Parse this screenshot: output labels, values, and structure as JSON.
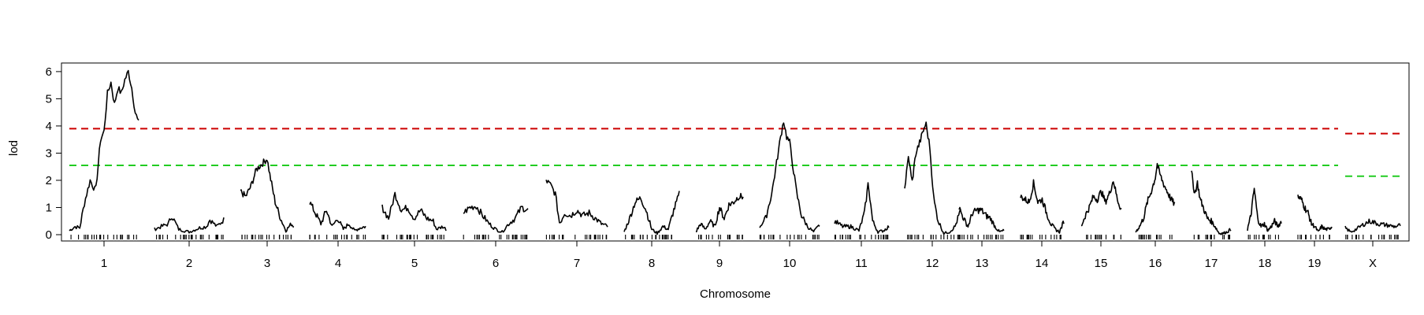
{
  "chart_data": {
    "type": "line",
    "title": "",
    "xlabel": "Chromosome",
    "ylabel": "lod",
    "ylim": [
      0,
      6.2
    ],
    "y_ticks": [
      "0",
      "1",
      "2",
      "3",
      "4",
      "5",
      "6"
    ],
    "grid": false,
    "legend": "none",
    "colors": {
      "line": "#000000",
      "threshold_high": "#cc0000",
      "threshold_low": "#22cc22"
    },
    "thresholds": {
      "autosomes": {
        "high": 3.9,
        "low": 2.55
      },
      "X": {
        "high": 3.72,
        "low": 2.15
      }
    },
    "chromosomes": [
      {
        "label": "1",
        "profile": [
          [
            0,
            0.15
          ],
          [
            0.08,
            0.3
          ],
          [
            0.15,
            0.25
          ],
          [
            0.22,
            1.2
          ],
          [
            0.3,
            2.0
          ],
          [
            0.38,
            1.6
          ],
          [
            0.45,
            3.5
          ],
          [
            0.5,
            3.8
          ],
          [
            0.55,
            5.2
          ],
          [
            0.6,
            5.6
          ],
          [
            0.65,
            4.8
          ],
          [
            0.7,
            5.4
          ],
          [
            0.75,
            5.2
          ],
          [
            0.8,
            5.7
          ],
          [
            0.85,
            6.0
          ],
          [
            0.9,
            5.4
          ],
          [
            0.95,
            4.5
          ],
          [
            1,
            4.1
          ]
        ]
      },
      {
        "label": "2",
        "profile": [
          [
            0,
            0.2
          ],
          [
            0.2,
            0.4
          ],
          [
            0.25,
            0.7
          ],
          [
            0.35,
            0.2
          ],
          [
            0.5,
            0.1
          ],
          [
            0.65,
            0.25
          ],
          [
            0.75,
            0.3
          ],
          [
            0.8,
            0.55
          ],
          [
            0.9,
            0.3
          ],
          [
            1,
            0.55
          ]
        ]
      },
      {
        "label": "3",
        "profile": [
          [
            0,
            1.6
          ],
          [
            0.1,
            1.4
          ],
          [
            0.2,
            1.8
          ],
          [
            0.3,
            2.4
          ],
          [
            0.4,
            2.6
          ],
          [
            0.5,
            2.8
          ],
          [
            0.55,
            2.2
          ],
          [
            0.65,
            1.2
          ],
          [
            0.75,
            0.6
          ],
          [
            0.85,
            0.15
          ],
          [
            0.95,
            0.4
          ],
          [
            1,
            0.3
          ]
        ]
      },
      {
        "label": "4",
        "profile": [
          [
            0,
            1.2
          ],
          [
            0.1,
            0.8
          ],
          [
            0.2,
            0.4
          ],
          [
            0.3,
            0.9
          ],
          [
            0.4,
            0.3
          ],
          [
            0.5,
            0.6
          ],
          [
            0.6,
            0.2
          ],
          [
            0.7,
            0.4
          ],
          [
            0.8,
            0.15
          ],
          [
            0.9,
            0.25
          ],
          [
            1,
            0.3
          ]
        ]
      },
      {
        "label": "5",
        "profile": [
          [
            0,
            1.0
          ],
          [
            0.1,
            0.6
          ],
          [
            0.2,
            1.5
          ],
          [
            0.3,
            0.9
          ],
          [
            0.4,
            1.0
          ],
          [
            0.5,
            0.6
          ],
          [
            0.6,
            0.9
          ],
          [
            0.7,
            0.6
          ],
          [
            0.8,
            0.5
          ],
          [
            0.85,
            0.2
          ],
          [
            0.95,
            0.3
          ],
          [
            1,
            0.2
          ]
        ]
      },
      {
        "label": "6",
        "profile": [
          [
            0,
            0.8
          ],
          [
            0.1,
            1.0
          ],
          [
            0.2,
            1.05
          ],
          [
            0.3,
            0.7
          ],
          [
            0.4,
            0.4
          ],
          [
            0.5,
            0.2
          ],
          [
            0.6,
            0.1
          ],
          [
            0.7,
            0.4
          ],
          [
            0.8,
            0.6
          ],
          [
            0.9,
            1.0
          ],
          [
            1,
            0.9
          ]
        ]
      },
      {
        "label": "7",
        "profile": [
          [
            0,
            2.0
          ],
          [
            0.08,
            1.8
          ],
          [
            0.15,
            1.5
          ],
          [
            0.22,
            0.4
          ],
          [
            0.3,
            0.8
          ],
          [
            0.4,
            0.7
          ],
          [
            0.5,
            0.9
          ],
          [
            0.6,
            0.7
          ],
          [
            0.7,
            0.8
          ],
          [
            0.8,
            0.6
          ],
          [
            0.9,
            0.4
          ],
          [
            1,
            0.3
          ]
        ]
      },
      {
        "label": "8",
        "profile": [
          [
            0,
            0.1
          ],
          [
            0.1,
            0.6
          ],
          [
            0.2,
            1.2
          ],
          [
            0.3,
            1.35
          ],
          [
            0.4,
            0.9
          ],
          [
            0.5,
            0.2
          ],
          [
            0.6,
            0.05
          ],
          [
            0.7,
            0.3
          ],
          [
            0.8,
            0.2
          ],
          [
            0.9,
            0.9
          ],
          [
            1,
            1.5
          ]
        ]
      },
      {
        "label": "9",
        "profile": [
          [
            0,
            0.1
          ],
          [
            0.1,
            0.4
          ],
          [
            0.2,
            0.2
          ],
          [
            0.3,
            0.5
          ],
          [
            0.4,
            0.3
          ],
          [
            0.5,
            1.0
          ],
          [
            0.6,
            0.6
          ],
          [
            0.7,
            1.1
          ],
          [
            0.8,
            1.2
          ],
          [
            0.9,
            1.4
          ],
          [
            1,
            1.4
          ]
        ]
      },
      {
        "label": "10",
        "profile": [
          [
            0,
            0.3
          ],
          [
            0.1,
            0.6
          ],
          [
            0.2,
            1.5
          ],
          [
            0.28,
            2.6
          ],
          [
            0.35,
            3.6
          ],
          [
            0.4,
            4.2
          ],
          [
            0.45,
            3.6
          ],
          [
            0.5,
            3.4
          ],
          [
            0.55,
            2.6
          ],
          [
            0.62,
            1.5
          ],
          [
            0.7,
            0.7
          ],
          [
            0.8,
            0.3
          ],
          [
            0.9,
            0.1
          ],
          [
            1,
            0.35
          ]
        ]
      },
      {
        "label": "11",
        "profile": [
          [
            0,
            0.5
          ],
          [
            0.15,
            0.3
          ],
          [
            0.3,
            0.3
          ],
          [
            0.45,
            0.15
          ],
          [
            0.55,
            0.8
          ],
          [
            0.62,
            1.9
          ],
          [
            0.7,
            0.5
          ],
          [
            0.8,
            0.1
          ],
          [
            0.9,
            0.15
          ],
          [
            1,
            0.3
          ]
        ]
      },
      {
        "label": "12",
        "profile": [
          [
            0,
            1.7
          ],
          [
            0.07,
            2.9
          ],
          [
            0.13,
            1.9
          ],
          [
            0.2,
            3.0
          ],
          [
            0.27,
            3.4
          ],
          [
            0.33,
            3.8
          ],
          [
            0.38,
            4.1
          ],
          [
            0.45,
            3.2
          ],
          [
            0.52,
            1.3
          ],
          [
            0.6,
            0.5
          ],
          [
            0.7,
            0.05
          ],
          [
            0.8,
            0.1
          ],
          [
            0.9,
            0.3
          ],
          [
            1,
            0.9
          ]
        ]
      },
      {
        "label": "13",
        "profile": [
          [
            0,
            1.0
          ],
          [
            0.1,
            0.6
          ],
          [
            0.2,
            0.3
          ],
          [
            0.3,
            0.8
          ],
          [
            0.4,
            0.9
          ],
          [
            0.5,
            0.9
          ],
          [
            0.6,
            0.7
          ],
          [
            0.7,
            0.6
          ],
          [
            0.8,
            0.3
          ],
          [
            0.9,
            0.1
          ],
          [
            1,
            0.15
          ]
        ]
      },
      {
        "label": "14",
        "profile": [
          [
            0,
            1.4
          ],
          [
            0.1,
            1.3
          ],
          [
            0.2,
            1.2
          ],
          [
            0.3,
            1.9
          ],
          [
            0.4,
            1.2
          ],
          [
            0.5,
            1.3
          ],
          [
            0.6,
            0.8
          ],
          [
            0.7,
            0.4
          ],
          [
            0.8,
            0.2
          ],
          [
            0.9,
            0.1
          ],
          [
            1,
            0.5
          ]
        ]
      },
      {
        "label": "15",
        "profile": [
          [
            0,
            0.3
          ],
          [
            0.1,
            0.7
          ],
          [
            0.2,
            1.0
          ],
          [
            0.3,
            1.4
          ],
          [
            0.4,
            1.3
          ],
          [
            0.5,
            1.6
          ],
          [
            0.6,
            1.2
          ],
          [
            0.7,
            1.5
          ],
          [
            0.8,
            2.0
          ],
          [
            0.9,
            1.3
          ],
          [
            1,
            0.9
          ]
        ]
      },
      {
        "label": "16",
        "profile": [
          [
            0,
            0.1
          ],
          [
            0.1,
            0.3
          ],
          [
            0.2,
            0.6
          ],
          [
            0.3,
            1.2
          ],
          [
            0.4,
            1.6
          ],
          [
            0.5,
            2.1
          ],
          [
            0.55,
            2.6
          ],
          [
            0.6,
            2.3
          ],
          [
            0.7,
            1.9
          ],
          [
            0.8,
            1.6
          ],
          [
            0.9,
            1.3
          ],
          [
            1,
            1.1
          ]
        ]
      },
      {
        "label": "17",
        "profile": [
          [
            0,
            2.3
          ],
          [
            0.08,
            1.5
          ],
          [
            0.15,
            1.9
          ],
          [
            0.22,
            1.3
          ],
          [
            0.3,
            1.0
          ],
          [
            0.4,
            0.6
          ],
          [
            0.5,
            0.5
          ],
          [
            0.6,
            0.3
          ],
          [
            0.7,
            0.05
          ],
          [
            0.8,
            0.05
          ],
          [
            0.9,
            0.1
          ],
          [
            1,
            0.2
          ]
        ]
      },
      {
        "label": "18",
        "profile": [
          [
            0,
            0.2
          ],
          [
            0.1,
            0.7
          ],
          [
            0.2,
            1.7
          ],
          [
            0.3,
            0.6
          ],
          [
            0.4,
            0.3
          ],
          [
            0.5,
            0.4
          ],
          [
            0.6,
            0.15
          ],
          [
            0.7,
            0.3
          ],
          [
            0.8,
            0.5
          ],
          [
            0.9,
            0.3
          ],
          [
            1,
            0.5
          ]
        ]
      },
      {
        "label": "19",
        "profile": [
          [
            0,
            1.4
          ],
          [
            0.1,
            1.3
          ],
          [
            0.2,
            1.0
          ],
          [
            0.3,
            0.8
          ],
          [
            0.4,
            0.4
          ],
          [
            0.5,
            0.3
          ],
          [
            0.6,
            0.1
          ],
          [
            0.7,
            0.3
          ],
          [
            0.8,
            0.2
          ],
          [
            0.9,
            0.2
          ],
          [
            1,
            0.3
          ]
        ]
      },
      {
        "label": "X",
        "profile": [
          [
            0,
            0.25
          ],
          [
            0.1,
            0.1
          ],
          [
            0.2,
            0.2
          ],
          [
            0.35,
            0.4
          ],
          [
            0.45,
            0.5
          ],
          [
            0.6,
            0.4
          ],
          [
            0.75,
            0.35
          ],
          [
            0.9,
            0.3
          ],
          [
            1,
            0.35
          ]
        ]
      }
    ]
  }
}
